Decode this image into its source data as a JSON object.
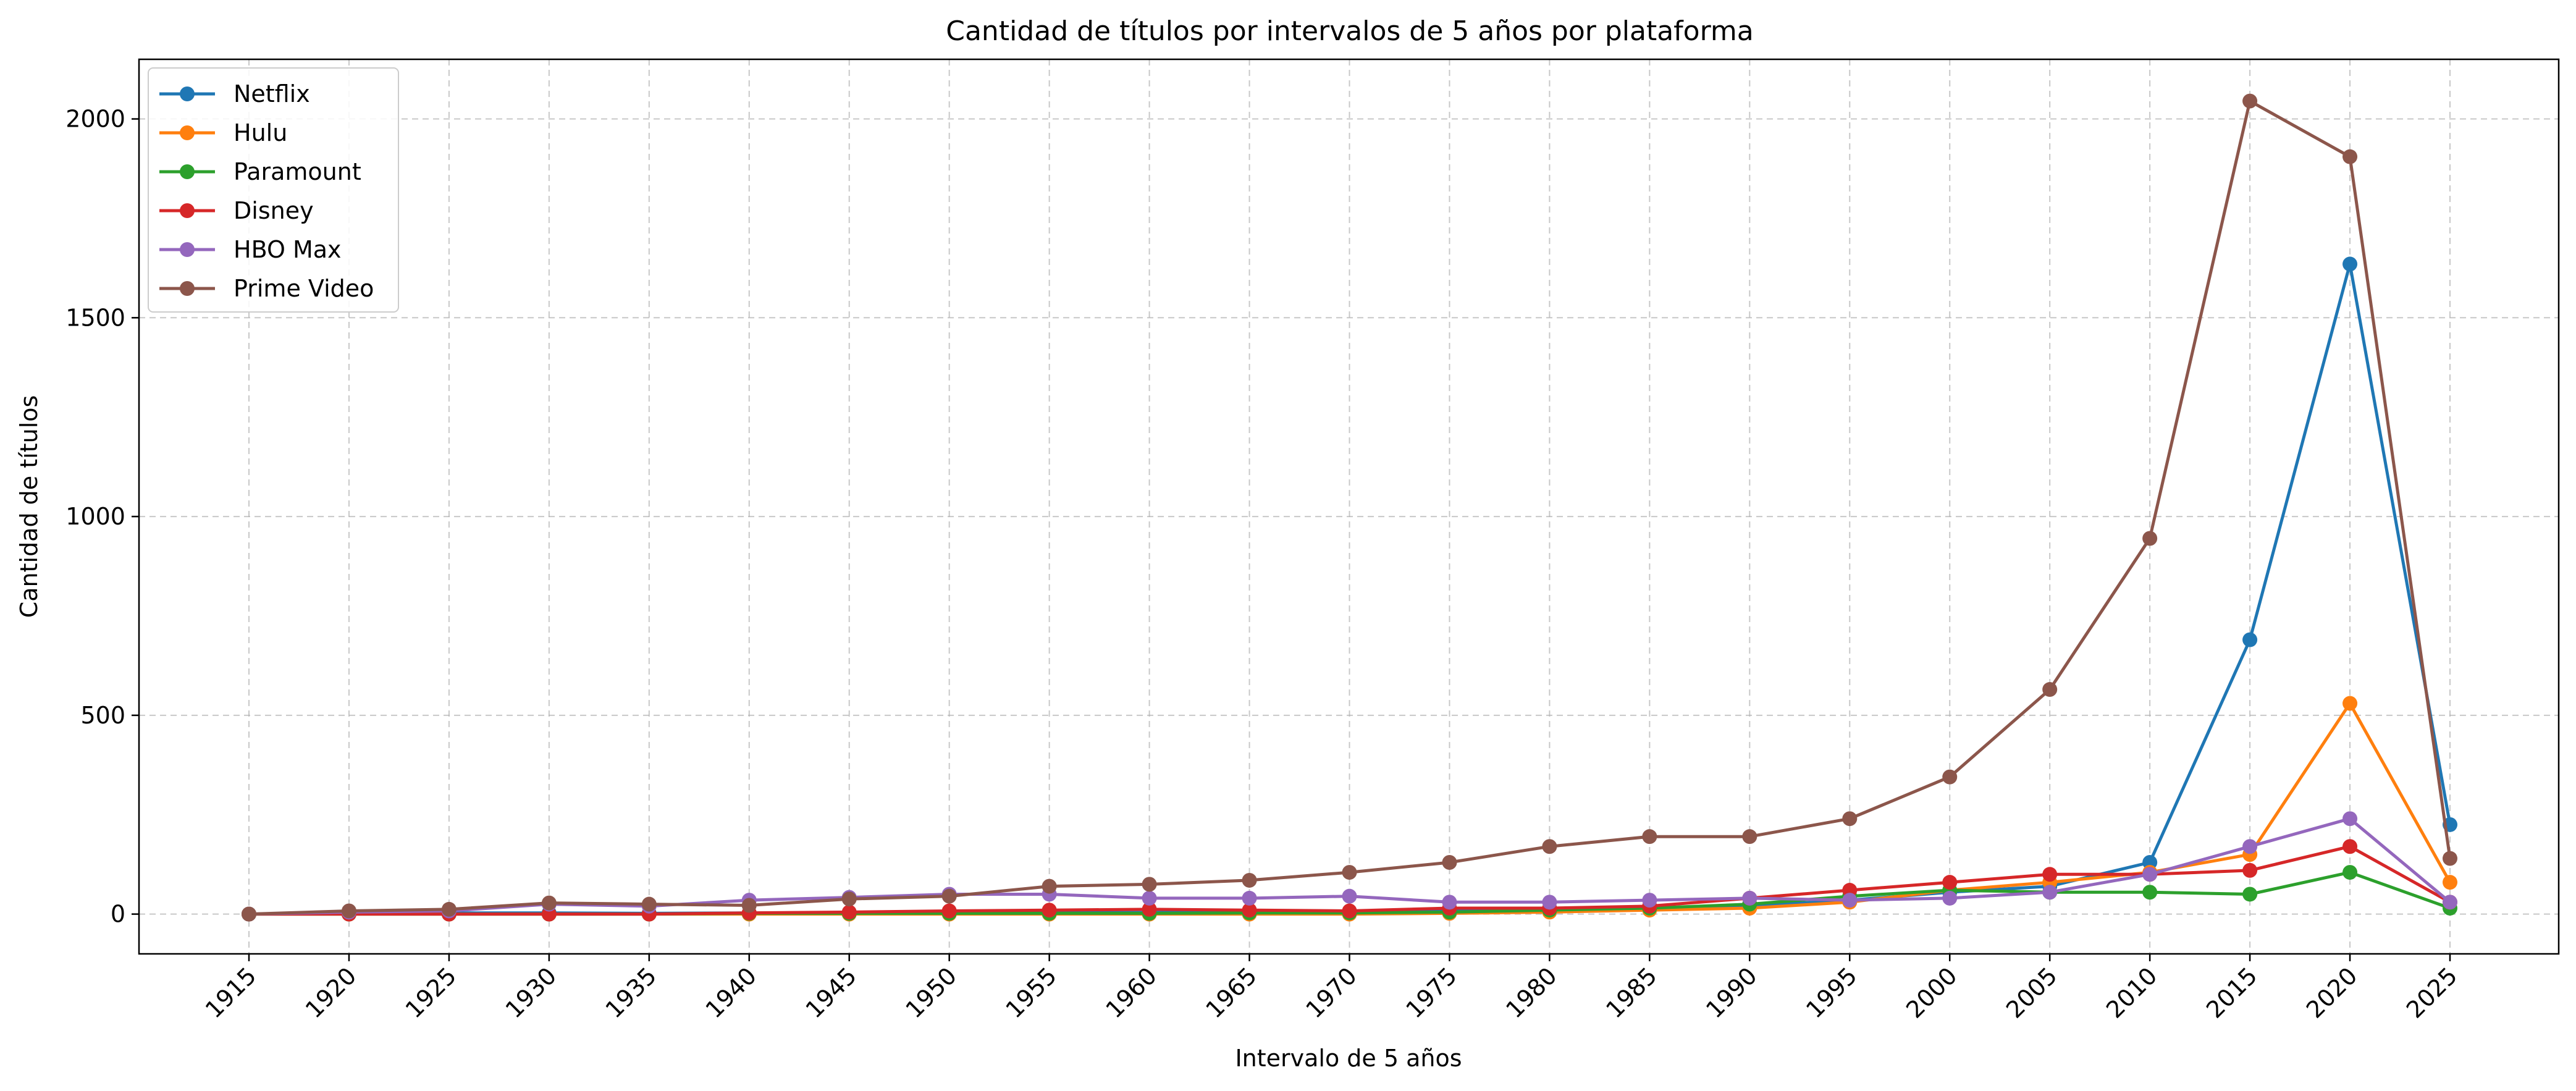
{
  "chart_data": {
    "type": "line",
    "title": "Cantidad de títulos por intervalos de 5 años por plataforma",
    "xlabel": "Intervalo de 5 años",
    "ylabel": "Cantidad de títulos",
    "x": [
      1915,
      1920,
      1925,
      1930,
      1935,
      1940,
      1945,
      1950,
      1955,
      1960,
      1965,
      1970,
      1975,
      1980,
      1985,
      1990,
      1995,
      2000,
      2005,
      2010,
      2015,
      2020,
      2025
    ],
    "xtick_labels": [
      "1915",
      "1920",
      "1925",
      "1930",
      "1935",
      "1940",
      "1945",
      "1950",
      "1955",
      "1960",
      "1965",
      "1970",
      "1975",
      "1980",
      "1985",
      "1990",
      "1995",
      "2000",
      "2005",
      "2010",
      "2015",
      "2020",
      "2025"
    ],
    "ylim": [
      -100,
      2150
    ],
    "yticks": [
      0,
      500,
      1000,
      1500,
      2000
    ],
    "ytick_labels": [
      "0",
      "500",
      "1000",
      "1500",
      "2000"
    ],
    "grid": true,
    "legend_position": "top-left",
    "series": [
      {
        "name": "Netflix",
        "color": "#1f77b4",
        "values": [
          0,
          2,
          3,
          3,
          2,
          3,
          3,
          3,
          4,
          4,
          5,
          6,
          8,
          10,
          15,
          20,
          35,
          55,
          70,
          130,
          690,
          1635,
          225
        ]
      },
      {
        "name": "Hulu",
        "color": "#ff7f0e",
        "values": [
          0,
          0,
          0,
          0,
          0,
          0,
          0,
          0,
          0,
          0,
          0,
          0,
          2,
          5,
          10,
          15,
          30,
          60,
          80,
          105,
          150,
          530,
          80
        ]
      },
      {
        "name": "Paramount",
        "color": "#2ca02c",
        "values": [
          0,
          0,
          0,
          0,
          0,
          2,
          2,
          2,
          2,
          2,
          3,
          3,
          5,
          10,
          15,
          25,
          45,
          60,
          55,
          55,
          50,
          105,
          15
        ]
      },
      {
        "name": "Disney",
        "color": "#d62728",
        "values": [
          0,
          0,
          0,
          0,
          0,
          3,
          5,
          8,
          10,
          12,
          10,
          8,
          15,
          15,
          20,
          40,
          60,
          80,
          100,
          100,
          110,
          170,
          30
        ]
      },
      {
        "name": "HBO Max",
        "color": "#9467bd",
        "values": [
          0,
          5,
          8,
          25,
          20,
          35,
          42,
          50,
          50,
          40,
          40,
          45,
          30,
          30,
          35,
          40,
          35,
          40,
          55,
          100,
          170,
          240,
          30
        ]
      },
      {
        "name": "Prime Video",
        "color": "#8c564b",
        "values": [
          0,
          8,
          12,
          28,
          25,
          22,
          38,
          45,
          70,
          75,
          85,
          105,
          130,
          170,
          195,
          195,
          240,
          345,
          565,
          945,
          2045,
          1905,
          140
        ]
      }
    ]
  }
}
